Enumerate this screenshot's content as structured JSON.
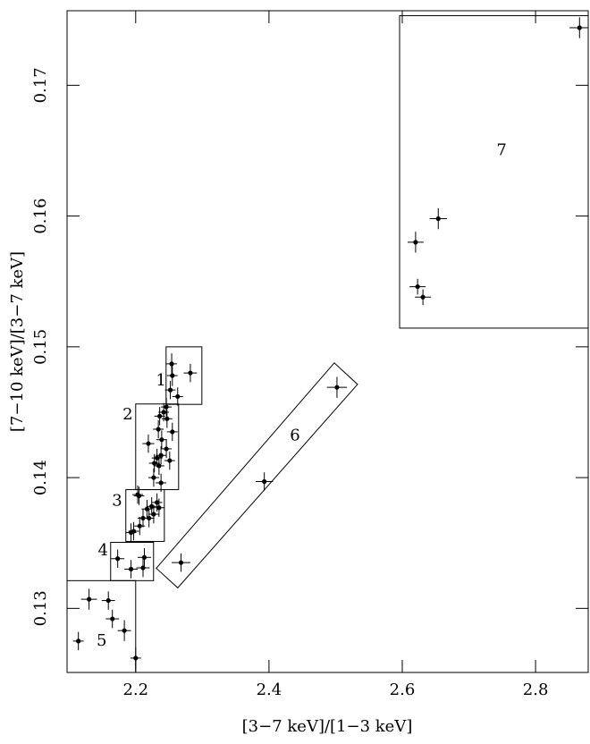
{
  "chart_data": {
    "type": "scatter",
    "x_label": "[3−7 keV]/[1−3 keV]",
    "y_label": "[7−10 keV]/[3−7 keV]",
    "xlim": [
      2.097,
      2.879
    ],
    "ylim": [
      0.1251,
      0.1757
    ],
    "xticks": [
      2.2,
      2.4,
      2.6,
      2.8
    ],
    "yticks": [
      0.13,
      0.14,
      0.15,
      0.16,
      0.17
    ],
    "color": "#000000",
    "series": [
      {
        "x": [
          2.866,
          2.654,
          2.62,
          2.623,
          2.631,
          2.502,
          2.393,
          2.268,
          2.254,
          2.255,
          2.282,
          2.263,
          2.252,
          2.246,
          2.242,
          2.236,
          2.247,
          2.255,
          2.234,
          2.219,
          2.239,
          2.246,
          2.238,
          2.232,
          2.228,
          2.251,
          2.235,
          2.227,
          2.238,
          2.203,
          2.205,
          2.232,
          2.224,
          2.217,
          2.235,
          2.227,
          2.211,
          2.22,
          2.206,
          2.197,
          2.193,
          2.173,
          2.213,
          2.193,
          2.211,
          2.13,
          2.159,
          2.165,
          2.183,
          2.114,
          2.2
        ],
        "values": [
          0.1744,
          0.1598,
          0.158,
          0.1546,
          0.1538,
          0.1469,
          0.1397,
          0.1335,
          0.1487,
          0.1478,
          0.148,
          0.1462,
          0.1467,
          0.1454,
          0.145,
          0.1447,
          0.1445,
          0.1435,
          0.1437,
          0.1426,
          0.1429,
          0.1422,
          0.1417,
          0.1415,
          0.1411,
          0.1413,
          0.1409,
          0.14,
          0.1396,
          0.1387,
          0.1386,
          0.1381,
          0.1378,
          0.1376,
          0.1377,
          0.1372,
          0.1369,
          0.1369,
          0.1363,
          0.1359,
          0.1358,
          0.1338,
          0.1339,
          0.133,
          0.1331,
          0.1307,
          0.1306,
          0.1292,
          0.1283,
          0.1275,
          0.1262
        ],
        "xerr": [
          0.015,
          0.013,
          0.012,
          0.012,
          0.012,
          0.015,
          0.013,
          0.014,
          0.008,
          0.008,
          0.01,
          0.008,
          0.008,
          0.008,
          0.008,
          0.008,
          0.008,
          0.008,
          0.008,
          0.009,
          0.008,
          0.008,
          0.008,
          0.008,
          0.008,
          0.008,
          0.008,
          0.008,
          0.008,
          0.008,
          0.008,
          0.008,
          0.008,
          0.008,
          0.008,
          0.008,
          0.008,
          0.008,
          0.008,
          0.008,
          0.008,
          0.01,
          0.01,
          0.01,
          0.01,
          0.012,
          0.01,
          0.01,
          0.01,
          0.008,
          0.008
        ],
        "yerr": [
          0.0008,
          0.0008,
          0.0008,
          0.0006,
          0.0006,
          0.0008,
          0.0007,
          0.0007,
          0.0008,
          0.0008,
          0.0007,
          0.0007,
          0.0007,
          0.0007,
          0.0007,
          0.0007,
          0.0007,
          0.0007,
          0.0007,
          0.0007,
          0.0007,
          0.0007,
          0.0007,
          0.0007,
          0.0007,
          0.0007,
          0.0007,
          0.0007,
          0.0007,
          0.0007,
          0.0007,
          0.0007,
          0.0007,
          0.0007,
          0.0007,
          0.0007,
          0.0007,
          0.0007,
          0.0007,
          0.0007,
          0.0007,
          0.0007,
          0.0007,
          0.0007,
          0.0007,
          0.0008,
          0.0007,
          0.0007,
          0.0008,
          0.0007,
          0.0008
        ]
      }
    ],
    "regions": [
      {
        "label": "1",
        "x": [
          2.2456,
          2.2993
        ],
        "y": [
          0.1456,
          0.15
        ],
        "label_at": [
          2.238,
          0.1474
        ]
      },
      {
        "label": "2",
        "x": [
          2.2,
          2.2644
        ],
        "y": [
          0.13908,
          0.14563
        ],
        "label_at": [
          2.188,
          0.1448
        ]
      },
      {
        "label": "3",
        "x": [
          2.1852,
          2.243
        ],
        "y": [
          0.13512,
          0.13908
        ],
        "label_at": [
          2.172,
          0.1382
        ]
      },
      {
        "label": "4",
        "x": [
          2.1624,
          2.2268
        ],
        "y": [
          0.13212,
          0.13505
        ],
        "label_at": [
          2.151,
          0.1344
        ]
      },
      {
        "label": "5",
        "x": [
          2.09,
          2.2
        ],
        "y": [
          0.125,
          0.13212
        ],
        "label_at": [
          2.149,
          0.1275
        ]
      },
      {
        "label": "6",
        "corners": [
          [
            2.2309,
            0.13307
          ],
          [
            2.2631,
            0.13157
          ],
          [
            2.5329,
            0.14713
          ],
          [
            2.498,
            0.14877
          ]
        ],
        "label_at": [
          2.439,
          0.1432
        ]
      },
      {
        "label": "7",
        "x": [
          2.596,
          2.879
        ],
        "y": [
          0.15143,
          0.17532
        ],
        "label_at": [
          2.749,
          0.165
        ]
      }
    ]
  }
}
